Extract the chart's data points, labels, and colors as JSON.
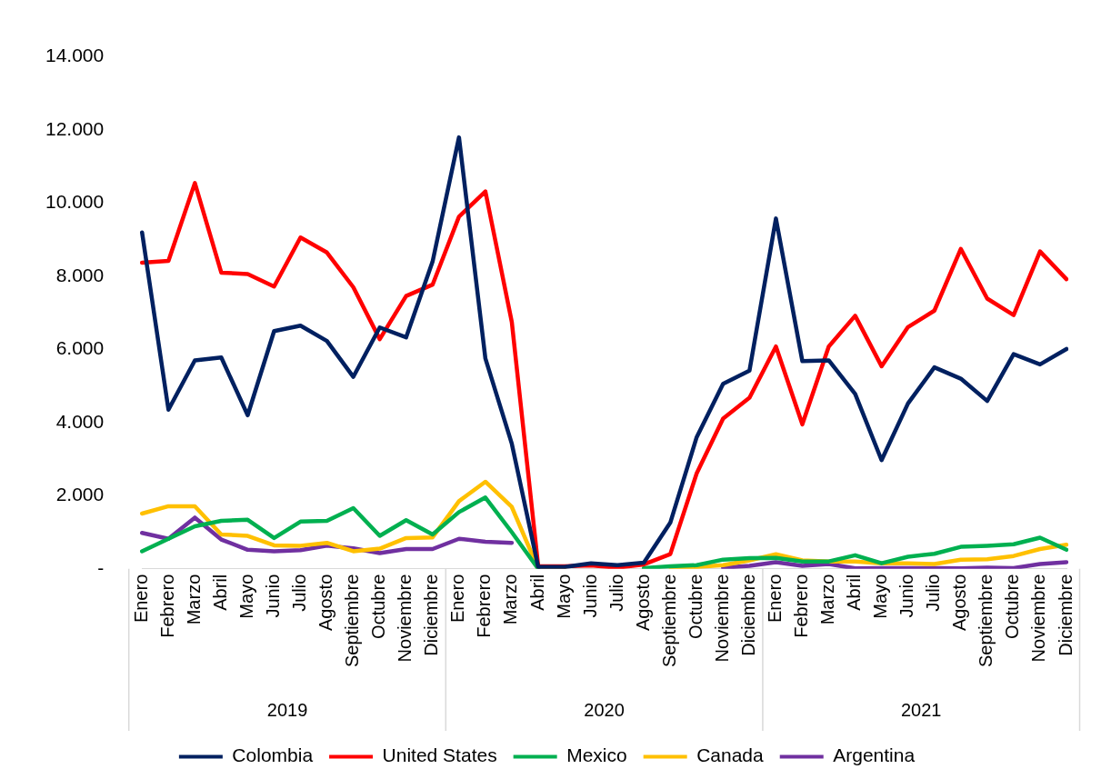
{
  "chart_data": {
    "type": "line",
    "categories": [
      "Enero",
      "Febrero",
      "Marzo",
      "Abril",
      "Mayo",
      "Junio",
      "Julio",
      "Agosto",
      "Septiembre",
      "Octubre",
      "Noviembre",
      "Diciembre",
      "Enero",
      "Febrero",
      "Marzo",
      "Abril",
      "Mayo",
      "Junio",
      "Julio",
      "Agosto",
      "Septiembre",
      "Octubre",
      "Noviembre",
      "Diciembre",
      "Enero",
      "Febrero",
      "Marzo",
      "Abril",
      "Mayo",
      "Junio",
      "Julio",
      "Agosto",
      "Septiembre",
      "Octubre",
      "Noviembre",
      "Diciembre"
    ],
    "annotations": [
      "2019",
      "2020",
      "2021"
    ],
    "series": [
      {
        "name": "Colombia",
        "color": "#002060",
        "values": [
          9200,
          4350,
          5700,
          5780,
          4200,
          6500,
          6650,
          6230,
          5250,
          6600,
          6330,
          8400,
          11800,
          5750,
          3420,
          50,
          50,
          150,
          100,
          170,
          1260,
          3600,
          5060,
          5420,
          9580,
          5680,
          5700,
          4780,
          2970,
          4520,
          5510,
          5200,
          4590,
          5870,
          5590,
          6010
        ]
      },
      {
        "name": "United States",
        "color": "#ff0000",
        "values": [
          8370,
          8420,
          10550,
          8100,
          8060,
          7720,
          9060,
          8650,
          7700,
          6280,
          7460,
          7770,
          9630,
          10320,
          6750,
          70,
          70,
          90,
          30,
          120,
          400,
          2610,
          4110,
          4680,
          6080,
          3950,
          6080,
          6920,
          5540,
          6610,
          7060,
          8750,
          7390,
          6940,
          8680,
          7920
        ]
      },
      {
        "name": "Mexico",
        "color": "#00b050",
        "values": [
          480,
          820,
          1160,
          1310,
          1340,
          840,
          1290,
          1310,
          1660,
          900,
          1330,
          940,
          1550,
          1950,
          1000,
          0,
          null,
          null,
          null,
          20,
          70,
          100,
          250,
          290,
          300,
          200,
          200,
          370,
          150,
          330,
          410,
          600,
          630,
          670,
          850,
          520
        ]
      },
      {
        "name": "Canada",
        "color": "#ffc000",
        "values": [
          1510,
          1710,
          1710,
          940,
          900,
          640,
          630,
          710,
          480,
          550,
          840,
          860,
          1850,
          2380,
          1690,
          0,
          0,
          null,
          null,
          null,
          50,
          50,
          100,
          230,
          400,
          230,
          200,
          200,
          150,
          150,
          130,
          250,
          260,
          350,
          540,
          660
        ]
      },
      {
        "name": "Argentina",
        "color": "#7030a0",
        "values": [
          980,
          820,
          1400,
          800,
          520,
          480,
          510,
          630,
          560,
          430,
          540,
          540,
          820,
          740,
          710,
          null,
          null,
          null,
          null,
          null,
          null,
          null,
          30,
          80,
          180,
          80,
          130,
          10,
          20,
          20,
          20,
          10,
          30,
          20,
          130,
          180
        ]
      }
    ],
    "ylim": [
      0,
      14000
    ],
    "yticks": [
      {
        "value": 0,
        "label": "-"
      },
      {
        "value": 2000,
        "label": "2.000"
      },
      {
        "value": 4000,
        "label": "4.000"
      },
      {
        "value": 6000,
        "label": "6.000"
      },
      {
        "value": 8000,
        "label": "8.000"
      },
      {
        "value": 10000,
        "label": "10.000"
      },
      {
        "value": 12000,
        "label": "12.000"
      },
      {
        "value": 14000,
        "label": "14.000"
      }
    ],
    "grid": false,
    "legend": "bottom",
    "marker": "none",
    "line_style": "solid"
  }
}
